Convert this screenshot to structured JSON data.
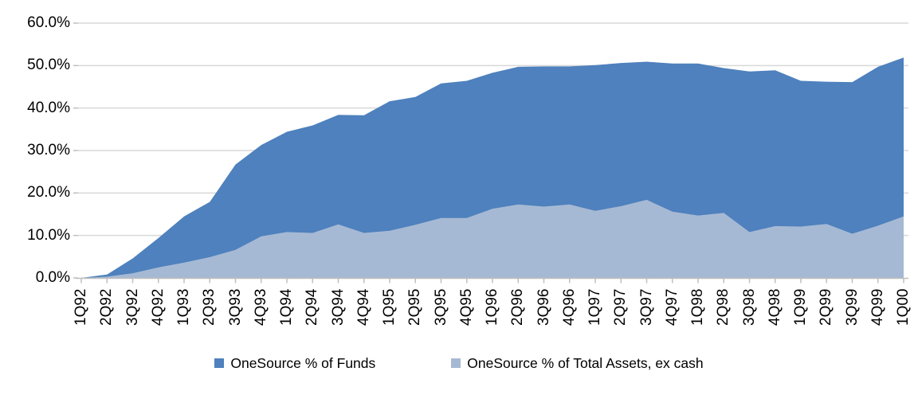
{
  "chart_data": {
    "type": "area",
    "title": "",
    "xlabel": "",
    "ylabel": "",
    "categories": [
      "1Q92",
      "2Q92",
      "3Q92",
      "4Q92",
      "1Q93",
      "2Q93",
      "3Q93",
      "4Q93",
      "1Q94",
      "2Q94",
      "3Q94",
      "4Q94",
      "1Q95",
      "2Q95",
      "3Q95",
      "4Q95",
      "1Q96",
      "2Q96",
      "3Q96",
      "4Q96",
      "1Q97",
      "2Q97",
      "3Q97",
      "4Q97",
      "1Q98",
      "2Q98",
      "3Q98",
      "4Q98",
      "1Q99",
      "2Q99",
      "3Q99",
      "4Q99",
      "1Q00"
    ],
    "series": [
      {
        "name": "OneSource % of Funds",
        "color": "#4E81BD",
        "values": [
          0.0,
          0.8,
          4.6,
          9.4,
          14.5,
          17.9,
          26.7,
          31.3,
          34.4,
          35.9,
          38.4,
          38.3,
          41.6,
          42.6,
          45.8,
          46.4,
          48.3,
          49.7,
          49.8,
          49.8,
          50.1,
          50.6,
          50.9,
          50.5,
          50.5,
          49.4,
          48.6,
          48.9,
          46.4,
          46.2,
          46.1,
          49.7,
          51.9
        ]
      },
      {
        "name": "OneSource % of Total Assets, ex cash",
        "color": "#A6B9D4",
        "values": [
          0.0,
          0.3,
          1.1,
          2.5,
          3.6,
          4.9,
          6.6,
          9.8,
          10.8,
          10.6,
          12.6,
          10.6,
          11.1,
          12.5,
          14.1,
          14.1,
          16.3,
          17.3,
          16.8,
          17.3,
          15.8,
          16.9,
          18.4,
          15.6,
          14.7,
          15.3,
          10.8,
          12.2,
          12.1,
          12.7,
          10.4,
          12.3,
          14.5
        ]
      }
    ],
    "y_axis": {
      "min": 0,
      "max": 60,
      "step": 10,
      "tick_labels": [
        "0.0%",
        "10.0%",
        "20.0%",
        "30.0%",
        "40.0%",
        "50.0%",
        "60.0%"
      ]
    },
    "legend_position": "bottom",
    "grid": "horizontal",
    "colors": {
      "background": "#FFFFFF",
      "gridline": "#D9D9D9",
      "axis": "#BFBFBF",
      "text": "#000000"
    }
  }
}
